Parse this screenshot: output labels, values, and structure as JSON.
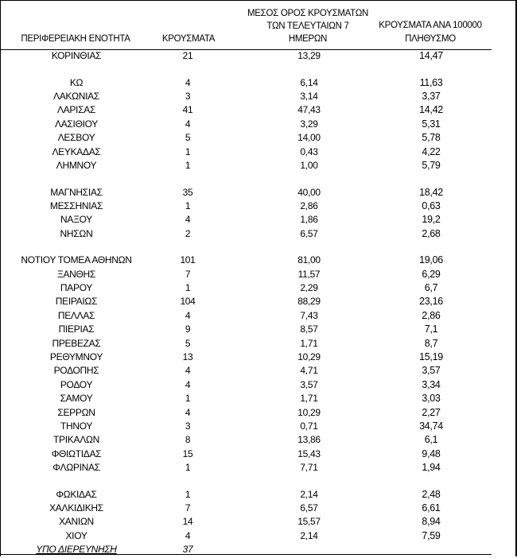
{
  "headers": {
    "region": "ΠΕΡΙΦΕΡΕΙΑΚΗ ΕΝΟΤΗΤΑ",
    "cases": "ΚΡΟΥΣΜΑΤΑ",
    "avg_line1": "ΜΕΣΟΣ ΟΡΟΣ ΚΡΟΥΣΜΑΤΩΝ",
    "avg_line2": "ΤΩΝ ΤΕΛΕΥΤΑΙΩΝ 7",
    "avg_line3": "ΗΜΕΡΩΝ",
    "per100k_line1": "ΚΡΟΥΣΜΑΤΑ ΑΝΑ 100000",
    "per100k_line2": "ΠΛΗΘΥΣΜΟ"
  },
  "rows": [
    {
      "name": "ΚΟΡΙΝΘΙΑΣ",
      "cases": "21",
      "avg": "13,29",
      "per100k": "14,47"
    },
    {
      "blank": true
    },
    {
      "name": "ΚΩ",
      "cases": "4",
      "avg": "6,14",
      "per100k": "11,63"
    },
    {
      "name": "ΛΑΚΩΝΙΑΣ",
      "cases": "3",
      "avg": "3,14",
      "per100k": "3,37"
    },
    {
      "name": "ΛΑΡΙΣΑΣ",
      "cases": "41",
      "avg": "47,43",
      "per100k": "14,42"
    },
    {
      "name": "ΛΑΣΙΘΙΟΥ",
      "cases": "4",
      "avg": "3,29",
      "per100k": "5,31"
    },
    {
      "name": "ΛΕΣΒΟΥ",
      "cases": "5",
      "avg": "14,00",
      "per100k": "5,78"
    },
    {
      "name": "ΛΕΥΚΑΔΑΣ",
      "cases": "1",
      "avg": "0,43",
      "per100k": "4,22"
    },
    {
      "name": "ΛΗΜΝΟΥ",
      "cases": "1",
      "avg": "1,00",
      "per100k": "5,79"
    },
    {
      "blank": true
    },
    {
      "name": "ΜΑΓΝΗΣΙΑΣ",
      "cases": "35",
      "avg": "40,00",
      "per100k": "18,42"
    },
    {
      "name": "ΜΕΣΣΗΝΙΑΣ",
      "cases": "1",
      "avg": "2,86",
      "per100k": "0,63"
    },
    {
      "name": "ΝΑΞΟΥ",
      "cases": "4",
      "avg": "1,86",
      "per100k": "19,2"
    },
    {
      "name": "ΝΗΣΩΝ",
      "cases": "2",
      "avg": "6,57",
      "per100k": "2,68"
    },
    {
      "blank": true
    },
    {
      "name": "ΝΟΤΙΟΥ ΤΟΜΕΑ ΑΘΗΝΩΝ",
      "cases": "101",
      "avg": "81,00",
      "per100k": "19,06"
    },
    {
      "name": "ΞΑΝΘΗΣ",
      "cases": "7",
      "avg": "11,57",
      "per100k": "6,29"
    },
    {
      "name": "ΠΑΡΟΥ",
      "cases": "1",
      "avg": "2,29",
      "per100k": "6,7"
    },
    {
      "name": "ΠΕΙΡΑΙΩΣ",
      "cases": "104",
      "avg": "88,29",
      "per100k": "23,16"
    },
    {
      "name": "ΠΕΛΛΑΣ",
      "cases": "4",
      "avg": "7,43",
      "per100k": "2,86"
    },
    {
      "name": "ΠΙΕΡΙΑΣ",
      "cases": "9",
      "avg": "8,57",
      "per100k": "7,1"
    },
    {
      "name": "ΠΡΕΒΕΖΑΣ",
      "cases": "5",
      "avg": "1,71",
      "per100k": "8,7"
    },
    {
      "name": "ΡΕΘΥΜΝΟΥ",
      "cases": "13",
      "avg": "10,29",
      "per100k": "15,19"
    },
    {
      "name": "ΡΟΔΟΠΗΣ",
      "cases": "4",
      "avg": "4,71",
      "per100k": "3,57"
    },
    {
      "name": "ΡΟΔΟΥ",
      "cases": "4",
      "avg": "3,57",
      "per100k": "3,34"
    },
    {
      "name": "ΣΑΜΟΥ",
      "cases": "1",
      "avg": "1,71",
      "per100k": "3,03"
    },
    {
      "name": "ΣΕΡΡΩΝ",
      "cases": "4",
      "avg": "10,29",
      "per100k": "2,27"
    },
    {
      "name": "ΤΗΝΟΥ",
      "cases": "3",
      "avg": "0,71",
      "per100k": "34,74"
    },
    {
      "name": "ΤΡΙΚΑΛΩΝ",
      "cases": "8",
      "avg": "13,86",
      "per100k": "6,1"
    },
    {
      "name": "ΦΘΙΩΤΙΔΑΣ",
      "cases": "15",
      "avg": "15,43",
      "per100k": "9,48"
    },
    {
      "name": "ΦΛΩΡΙΝΑΣ",
      "cases": "1",
      "avg": "7,71",
      "per100k": "1,94"
    },
    {
      "blank": true
    },
    {
      "name": "ΦΩΚΙΔΑΣ",
      "cases": "1",
      "avg": "2,14",
      "per100k": "2,48"
    },
    {
      "name": "ΧΑΛΚΙΔΙΚΗΣ",
      "cases": "7",
      "avg": "6,57",
      "per100k": "6,61"
    },
    {
      "name": "ΧΑΝΙΩΝ",
      "cases": "14",
      "avg": "15,57",
      "per100k": "8,94"
    },
    {
      "name": "ΧΙΟΥ",
      "cases": "4",
      "avg": "2,14",
      "per100k": "7,59"
    },
    {
      "name": "ΥΠΟ ΔΙΕΡΕΥΝΗΣΗ",
      "cases": "37",
      "avg": "",
      "per100k": "",
      "pending": true
    }
  ]
}
